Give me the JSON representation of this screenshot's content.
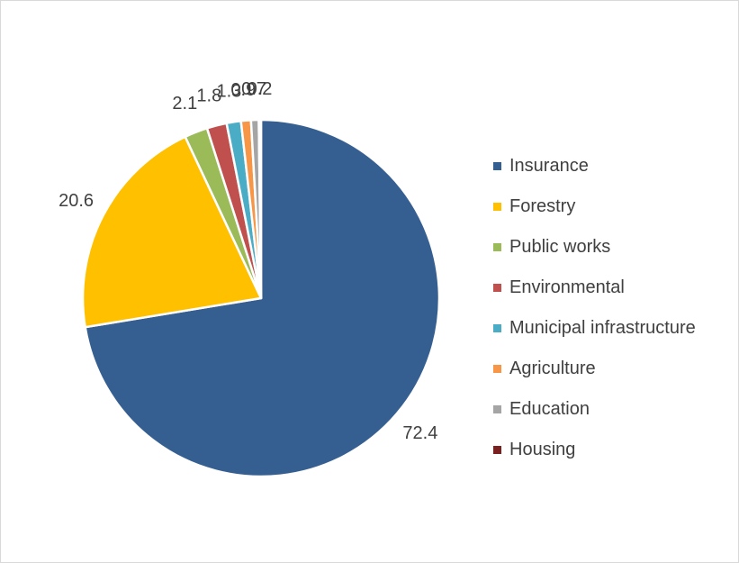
{
  "chart_data": {
    "type": "pie",
    "title": "",
    "start_angle_deg": 0,
    "direction": "clockwise",
    "legend_position": "right",
    "categories": [
      "Insurance",
      "Forestry",
      "Public works",
      "Environmental",
      "Municipal infrastructure",
      "Agriculture",
      "Education",
      "Housing"
    ],
    "values": [
      72.4,
      20.6,
      2.1,
      1.8,
      1.3,
      0.9,
      0.7,
      0.2
    ],
    "value_labels": [
      "72.4",
      "20.6",
      "2.1",
      "1.8",
      "1.3",
      "0.9",
      "0.7",
      "0.2"
    ],
    "colors": [
      "#365F91",
      "#FFC000",
      "#9BBB59",
      "#C0504D",
      "#4BACC6",
      "#F79646",
      "#A5A5A5",
      "#7B2020"
    ]
  }
}
